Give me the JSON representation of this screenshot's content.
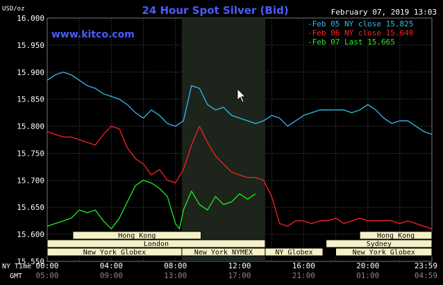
{
  "header": {
    "title": "24 Hour Spot Silver (Bid)",
    "date": "February 07, 2019 13:03",
    "unit": "USD/oz",
    "site": "www.kitco.com"
  },
  "colors": {
    "background": "#000000",
    "title": "#4a5cff",
    "site": "#4a5cff",
    "text": "#ffffff",
    "grid": "#555555",
    "shade": "#1c241c",
    "session_fill": "#f5f0c8",
    "series_feb05": "#33bbee",
    "series_feb06": "#ff2020",
    "series_feb07": "#22ee22"
  },
  "chart_data": {
    "type": "line",
    "ylim": [
      15.55,
      16.0
    ],
    "yticks": [
      "16.000",
      "15.950",
      "15.900",
      "15.850",
      "15.800",
      "15.750",
      "15.700",
      "15.650",
      "15.600",
      "15.550"
    ],
    "xlim": [
      0,
      24
    ],
    "x_unit": "hours (NY time)",
    "xticks_ny": [
      "00:00",
      "04:00",
      "08:00",
      "12:00",
      "16:00",
      "20:00",
      "23:59"
    ],
    "xticks_gmt": [
      "05:00",
      "09:00",
      "13:00",
      "17:00",
      "21:00",
      "01:00",
      "04:59"
    ],
    "row_labels": [
      "NY Time",
      "GMT"
    ],
    "shaded_region": [
      8.4,
      13.6
    ],
    "legend": [
      "Feb 05 NY close 15.825",
      "Feb 06 NY close 15.640",
      "Feb 07 Last 15.665"
    ],
    "series": [
      {
        "name": "Feb 05 NY close 15.825",
        "x": [
          0,
          0.5,
          1,
          1.5,
          2,
          2.5,
          3,
          3.5,
          4,
          4.5,
          5,
          5.5,
          6,
          6.5,
          7,
          7.5,
          8,
          8.5,
          9,
          9.5,
          10,
          10.5,
          11,
          11.5,
          12,
          12.5,
          13,
          13.5,
          14,
          14.5,
          15,
          15.5,
          16,
          16.5,
          17,
          17.5,
          18,
          18.5,
          19,
          19.5,
          20,
          20.5,
          21,
          21.5,
          22,
          22.5,
          23,
          23.5,
          24
        ],
        "values": [
          15.885,
          15.895,
          15.9,
          15.895,
          15.885,
          15.875,
          15.87,
          15.86,
          15.855,
          15.85,
          15.84,
          15.825,
          15.815,
          15.83,
          15.82,
          15.805,
          15.8,
          15.81,
          15.875,
          15.87,
          15.84,
          15.83,
          15.835,
          15.82,
          15.815,
          15.81,
          15.805,
          15.81,
          15.82,
          15.815,
          15.8,
          15.81,
          15.82,
          15.825,
          15.83,
          15.83,
          15.83,
          15.83,
          15.825,
          15.83,
          15.84,
          15.83,
          15.815,
          15.805,
          15.81,
          15.81,
          15.8,
          15.79,
          15.785
        ]
      },
      {
        "name": "Feb 06 NY close 15.640",
        "x": [
          0,
          0.5,
          1,
          1.5,
          2,
          2.5,
          3,
          3.5,
          4,
          4.5,
          5,
          5.5,
          6,
          6.5,
          7,
          7.5,
          8,
          8.5,
          9,
          9.5,
          10,
          10.5,
          11,
          11.5,
          12,
          12.5,
          13,
          13.5,
          14,
          14.5,
          15,
          15.5,
          16,
          16.5,
          17,
          17.5,
          18,
          18.5,
          19,
          19.5,
          20,
          20.5,
          21,
          21.5,
          22,
          22.5,
          23,
          23.5,
          24
        ],
        "values": [
          15.79,
          15.785,
          15.78,
          15.78,
          15.775,
          15.77,
          15.765,
          15.785,
          15.8,
          15.795,
          15.76,
          15.74,
          15.73,
          15.71,
          15.72,
          15.7,
          15.695,
          15.72,
          15.765,
          15.8,
          15.77,
          15.745,
          15.73,
          15.715,
          15.71,
          15.705,
          15.705,
          15.7,
          15.67,
          15.62,
          15.615,
          15.625,
          15.625,
          15.62,
          15.625,
          15.625,
          15.63,
          15.62,
          15.625,
          15.63,
          15.625,
          15.625,
          15.625,
          15.625,
          15.62,
          15.625,
          15.62,
          15.615,
          15.61
        ]
      },
      {
        "name": "Feb 07 Last 15.665",
        "x": [
          0,
          0.5,
          1,
          1.5,
          2,
          2.5,
          3,
          3.5,
          4,
          4.5,
          5,
          5.5,
          6,
          6.5,
          7,
          7.5,
          8,
          8.25,
          8.5,
          9,
          9.5,
          10,
          10.5,
          11,
          11.5,
          12,
          12.5,
          13
        ],
        "values": [
          15.615,
          15.62,
          15.625,
          15.63,
          15.645,
          15.64,
          15.645,
          15.625,
          15.61,
          15.63,
          15.66,
          15.69,
          15.7,
          15.695,
          15.685,
          15.67,
          15.62,
          15.61,
          15.645,
          15.68,
          15.655,
          15.645,
          15.67,
          15.655,
          15.66,
          15.675,
          15.665,
          15.675
        ]
      }
    ],
    "sessions": [
      {
        "name": "Hong Kong",
        "row": 0,
        "start": 1.6,
        "end": 9.6
      },
      {
        "name": "Hong Kong",
        "row": 0,
        "start": 19.5,
        "end": 24
      },
      {
        "name": "London",
        "row": 1,
        "start": 0,
        "end": 13.6
      },
      {
        "name": "Sydney",
        "row": 1,
        "start": 17.4,
        "end": 24
      },
      {
        "name": "New York Globex",
        "row": 2,
        "start": 0,
        "end": 8.4
      },
      {
        "name": "New York NYMEX",
        "row": 2,
        "start": 8.4,
        "end": 13.6
      },
      {
        "name": "NY Globex",
        "row": 2,
        "start": 13.6,
        "end": 17.2
      },
      {
        "name": "New York Globex",
        "row": 2,
        "start": 18.0,
        "end": 24
      }
    ]
  }
}
